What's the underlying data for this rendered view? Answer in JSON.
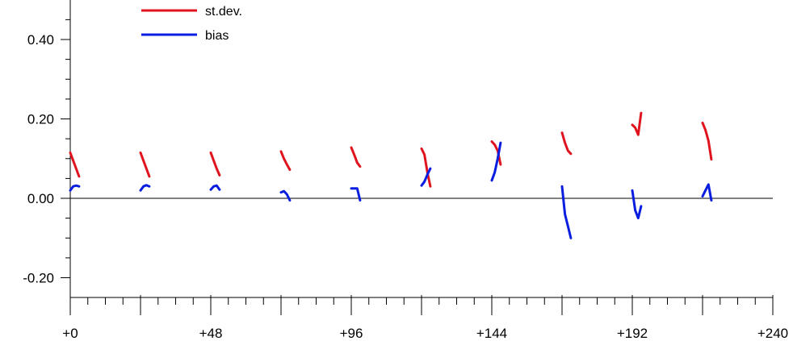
{
  "chart_data": {
    "type": "line",
    "title": "",
    "xlabel": "",
    "ylabel": "",
    "xlim": [
      0,
      240
    ],
    "ylim": [
      -0.25,
      0.5
    ],
    "x_ticks": [
      0,
      48,
      96,
      144,
      192,
      240
    ],
    "x_tick_labels": [
      "+0",
      "+48",
      "+96",
      "+144",
      "+192",
      "+240"
    ],
    "y_ticks": [
      -0.2,
      0.0,
      0.2,
      0.4
    ],
    "y_tick_labels": [
      "-0.20",
      "0.00",
      "0.20",
      "0.40"
    ],
    "zero_line": true,
    "grid": false,
    "legend_position": "top-left",
    "series": [
      {
        "name": "st.dev.",
        "color": "#e0141e",
        "segments": [
          [
            [
              0,
              0.115
            ],
            [
              1,
              0.095
            ],
            [
              2,
              0.075
            ],
            [
              3,
              0.055
            ]
          ],
          [
            [
              24,
              0.115
            ],
            [
              25,
              0.095
            ],
            [
              26,
              0.075
            ],
            [
              27,
              0.055
            ]
          ],
          [
            [
              48,
              0.115
            ],
            [
              49,
              0.095
            ],
            [
              50,
              0.075
            ],
            [
              51,
              0.058
            ]
          ],
          [
            [
              72,
              0.118
            ],
            [
              73,
              0.1
            ],
            [
              74,
              0.085
            ],
            [
              75,
              0.072
            ]
          ],
          [
            [
              96,
              0.128
            ],
            [
              97,
              0.11
            ],
            [
              98,
              0.09
            ],
            [
              99,
              0.08
            ]
          ],
          [
            [
              120,
              0.125
            ],
            [
              121,
              0.11
            ],
            [
              122,
              0.065
            ],
            [
              123,
              0.03
            ]
          ],
          [
            [
              144,
              0.143
            ],
            [
              145,
              0.135
            ],
            [
              146,
              0.12
            ],
            [
              147,
              0.085
            ]
          ],
          [
            [
              168,
              0.165
            ],
            [
              169,
              0.14
            ],
            [
              170,
              0.12
            ],
            [
              171,
              0.112
            ]
          ],
          [
            [
              192,
              0.185
            ],
            [
              193,
              0.178
            ],
            [
              194,
              0.16
            ],
            [
              195,
              0.215
            ]
          ],
          [
            [
              216,
              0.19
            ],
            [
              217,
              0.172
            ],
            [
              218,
              0.145
            ],
            [
              219,
              0.098
            ]
          ]
        ]
      },
      {
        "name": "bias",
        "color": "#0a1ee0",
        "segments": [
          [
            [
              0,
              0.02
            ],
            [
              1,
              0.03
            ],
            [
              2,
              0.032
            ],
            [
              3,
              0.03
            ]
          ],
          [
            [
              24,
              0.02
            ],
            [
              25,
              0.03
            ],
            [
              26,
              0.033
            ],
            [
              27,
              0.03
            ]
          ],
          [
            [
              48,
              0.022
            ],
            [
              49,
              0.03
            ],
            [
              50,
              0.032
            ],
            [
              51,
              0.022
            ]
          ],
          [
            [
              72,
              0.015
            ],
            [
              73,
              0.018
            ],
            [
              74,
              0.01
            ],
            [
              75,
              -0.005
            ]
          ],
          [
            [
              96,
              0.025
            ],
            [
              97,
              0.025
            ],
            [
              98,
              0.025
            ],
            [
              99,
              -0.005
            ]
          ],
          [
            [
              120,
              0.032
            ],
            [
              121,
              0.042
            ],
            [
              122,
              0.06
            ],
            [
              123,
              0.075
            ]
          ],
          [
            [
              144,
              0.045
            ],
            [
              145,
              0.065
            ],
            [
              146,
              0.1
            ],
            [
              147,
              0.14
            ]
          ],
          [
            [
              168,
              0.03
            ],
            [
              169,
              -0.04
            ],
            [
              170,
              -0.07
            ],
            [
              171,
              -0.1
            ]
          ],
          [
            [
              192,
              0.02
            ],
            [
              193,
              -0.03
            ],
            [
              194,
              -0.05
            ],
            [
              195,
              -0.02
            ]
          ],
          [
            [
              216,
              0.005
            ],
            [
              217,
              0.02
            ],
            [
              218,
              0.035
            ],
            [
              219,
              -0.005
            ]
          ]
        ]
      }
    ]
  }
}
